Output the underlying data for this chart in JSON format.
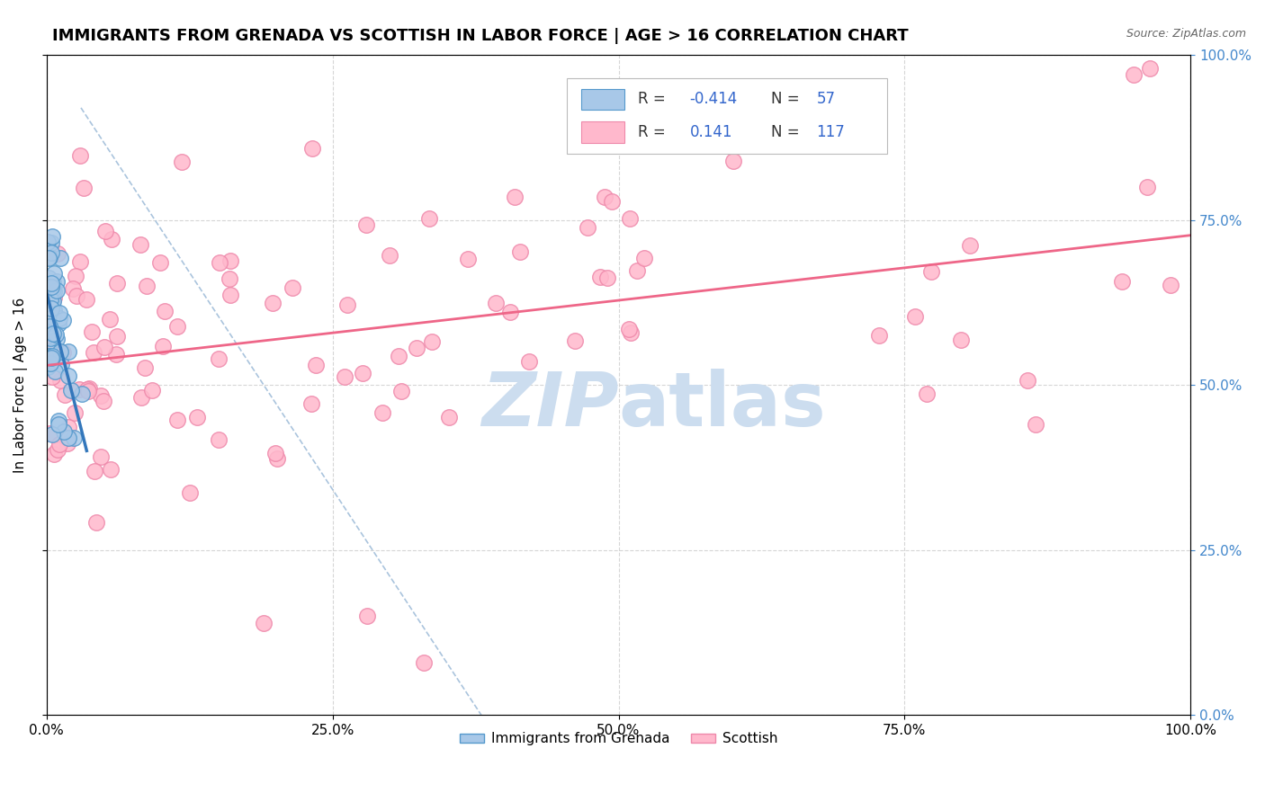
{
  "title": "IMMIGRANTS FROM GRENADA VS SCOTTISH IN LABOR FORCE | AGE > 16 CORRELATION CHART",
  "source_text": "Source: ZipAtlas.com",
  "ylabel": "In Labor Force | Age > 16",
  "right_ytick_labels": [
    "0.0%",
    "25.0%",
    "50.0%",
    "75.0%",
    "100.0%"
  ],
  "right_ytick_values": [
    0,
    0.25,
    0.5,
    0.75,
    1.0
  ],
  "xtick_labels": [
    "0.0%",
    "25.0%",
    "50.0%",
    "75.0%",
    "100.0%"
  ],
  "xtick_values": [
    0,
    0.25,
    0.5,
    0.75,
    1.0
  ],
  "legend_label1": "Immigrants from Grenada",
  "legend_label2": "Scottish",
  "blue_scatter_color": "#a8c8e8",
  "blue_edge_color": "#5599cc",
  "pink_scatter_color": "#ffb8cc",
  "pink_edge_color": "#ee88aa",
  "trend_blue_color": "#3377bb",
  "trend_pink_color": "#ee6688",
  "diag_color": "#aac4dd",
  "watermark_color": "#ccddef",
  "grid_color": "#cccccc",
  "title_fontsize": 13,
  "axis_label_fontsize": 11,
  "tick_fontsize": 11,
  "legend_color": "#4488cc",
  "r_text_color": "#3366cc"
}
